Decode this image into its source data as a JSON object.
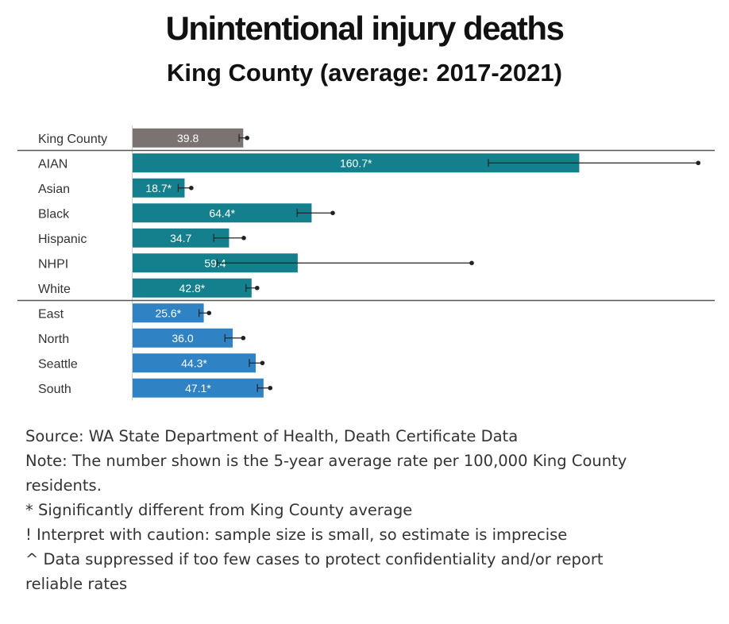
{
  "chart_data": {
    "type": "bar",
    "orientation": "horizontal",
    "title": "Unintentional injury deaths",
    "subtitle": "King County (average: 2017-2021)",
    "groups": [
      {
        "name": "total",
        "color": "#7b7272"
      },
      {
        "name": "race_ethnicity",
        "color": "#15808d"
      },
      {
        "name": "region",
        "color": "#2f82c4"
      }
    ],
    "categories": [
      "King County",
      "AIAN",
      "Asian",
      "Black",
      "Hispanic",
      "NHPI",
      "White",
      "East",
      "North",
      "Seattle",
      "South"
    ],
    "values": [
      39.8,
      160.7,
      18.7,
      64.4,
      34.7,
      59.4,
      42.8,
      25.6,
      36.0,
      44.3,
      47.1
    ],
    "value_labels": [
      "39.8",
      "160.7*",
      "18.7*",
      "64.4*",
      "34.7",
      "59.4",
      "42.8*",
      "25.6*",
      "36.0",
      "44.3*",
      "47.1*"
    ],
    "ci_lower": [
      38.3,
      128.0,
      16.4,
      59.2,
      29.2,
      30.4,
      40.8,
      23.9,
      33.2,
      42.0,
      44.9
    ],
    "ci_upper": [
      41.2,
      203.5,
      21.1,
      72.0,
      40.0,
      122.0,
      44.8,
      27.5,
      39.8,
      46.7,
      49.5
    ],
    "group_of": [
      0,
      1,
      1,
      1,
      1,
      1,
      1,
      2,
      2,
      2,
      2
    ],
    "xlim": [
      0,
      212
    ]
  },
  "notes": [
    "Source: WA State Department of Health, Death Certificate Data",
    "Note: The number shown is the 5-year average rate per 100,000 King County",
    "residents.",
    "* Significantly different from King County average",
    "! Interpret with caution: sample size is small, so estimate is imprecise",
    "^ Data suppressed if too few cases to protect confidentiality and/or report",
    "reliable rates"
  ]
}
